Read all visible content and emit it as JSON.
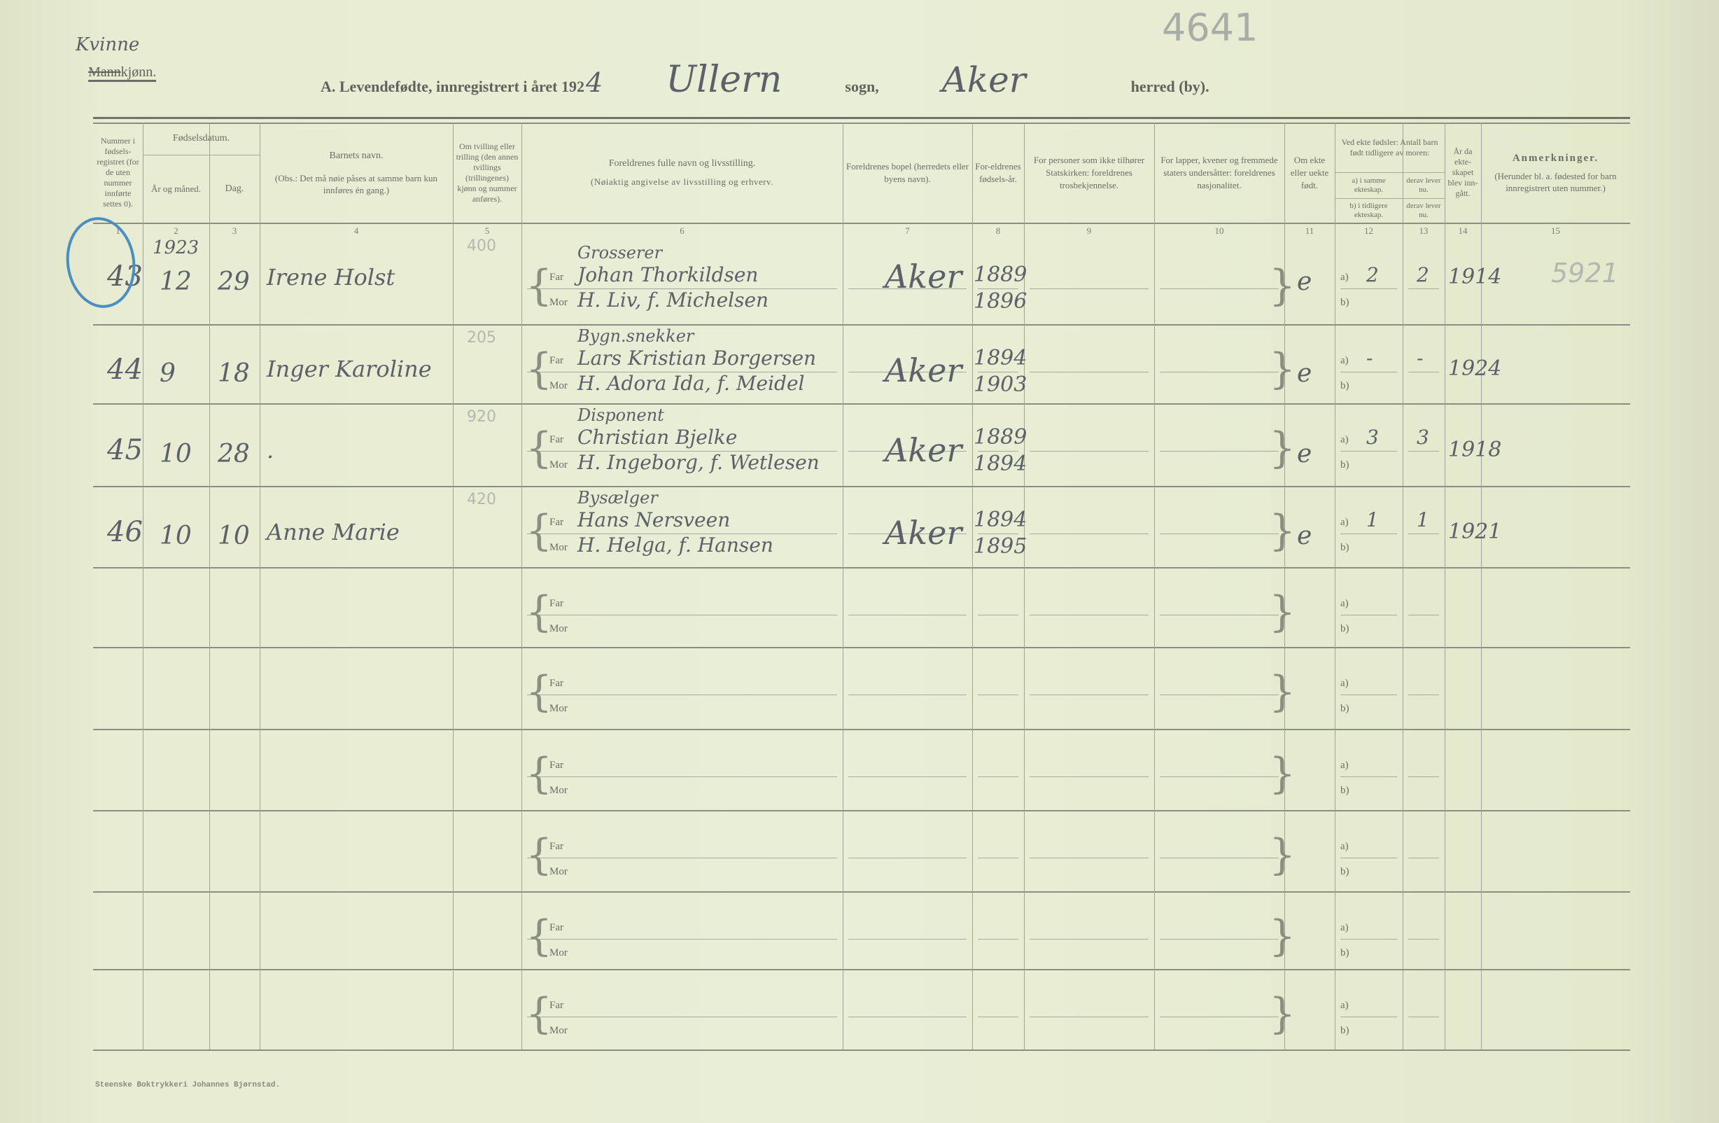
{
  "header": {
    "gender_handwritten": "Kvinne",
    "gender_struck": "Mann",
    "gender_suffix": "kjønn.",
    "title_prefix": "A.  Levendefødte, innregistrert i året 192",
    "year_digit": "4",
    "parish": "Ullern",
    "parish_suffix": "sogn,",
    "district": "Aker",
    "district_suffix": "herred (by).",
    "archive_number": "4641"
  },
  "columns": {
    "c1": "Nummer i fødsels-registret (for de uten nummer innførte settes 0).",
    "c23": "Fødselsdatum.",
    "c2": "År og måned.",
    "c3": "Dag.",
    "c4_title": "Barnets navn.",
    "c4_note": "(Obs.: Det må nøie påses at samme barn kun innføres én gang.)",
    "c5": "Om tvilling eller trilling (den annen tvillings (trillingenes) kjønn og nummer anføres).",
    "c6_title": "Foreldrenes fulle navn og livsstilling.",
    "c6_note": "(Nøiaktig angivelse av livsstilling og erhverv.",
    "c7": "Foreldrenes bopel (herredets eller byens navn).",
    "c8": "For-eldrenes fødsels-år.",
    "c9": "For personer som ikke tilhører Statskirken: foreldrenes trosbekjennelse.",
    "c10": "For lapper, kvener og fremmede staters undersåtter: foreldrenes nasjonalitet.",
    "c11": "Om ekte eller uekte født.",
    "c1213": "Ved ekte fødsler: Antall barn født tidligere av moren:",
    "c12a": "a) i samme ekteskap.",
    "c13a": "derav lever nu.",
    "c12b": "b) i tidligere ekteskap.",
    "c13b": "derav lever nu.",
    "c14": "År da ekte-skapet blev inn-gått.",
    "c15_title": "Anmerkninger.",
    "c15_note": "(Herunder bl. a. fødested for barn innregistrert uten nummer.)",
    "numbers": [
      "1",
      "2",
      "3",
      "4",
      "5",
      "6",
      "7",
      "8",
      "9",
      "10",
      "11",
      "12",
      "13",
      "14",
      "15"
    ]
  },
  "labels": {
    "far": "Far",
    "mor": "Mor",
    "a": "a)",
    "b": "b)"
  },
  "rows": [
    {
      "number": "43",
      "circled": true,
      "year": "1923",
      "month": "12",
      "day": "29",
      "name": "Irene Holst",
      "pencil": "400",
      "occupation": "Grosserer",
      "father": "Johan Thorkildsen",
      "mother": "H. Liv, f. Michelsen",
      "residence": "Aker",
      "father_year": "1889",
      "mother_year": "1896",
      "legit": "e",
      "a": "2",
      "a_alive": "2",
      "married": "1914",
      "note": "5921"
    },
    {
      "number": "44",
      "year": "",
      "month": "9",
      "day": "18",
      "name": "Inger Karoline",
      "pencil": "205",
      "occupation": "Bygn.snekker",
      "father": "Lars Kristian Borgersen",
      "mother": "H. Adora Ida, f. Meidel",
      "residence": "Aker",
      "father_year": "1894",
      "mother_year": "1903",
      "legit": "e",
      "a": "-",
      "a_alive": "-",
      "married": "1924",
      "note": ""
    },
    {
      "number": "45",
      "year": "",
      "month": "10",
      "day": "28",
      "name": ".",
      "pencil": "920",
      "occupation": "Disponent",
      "father": "Christian Bjelke",
      "mother": "H. Ingeborg, f. Wetlesen",
      "residence": "Aker",
      "father_year": "1889",
      "mother_year": "1894",
      "legit": "e",
      "a": "3",
      "a_alive": "3",
      "married": "1918",
      "note": ""
    },
    {
      "number": "46",
      "year": "",
      "month": "10",
      "day": "10",
      "name": "Anne Marie",
      "pencil": "420",
      "occupation": "Bysælger",
      "father": "Hans Nersveen",
      "mother": "H. Helga, f. Hansen",
      "residence": "Aker",
      "father_year": "1894",
      "mother_year": "1895",
      "legit": "e",
      "a": "1",
      "a_alive": "1",
      "married": "1921",
      "note": ""
    },
    {},
    {},
    {},
    {},
    {},
    {}
  ],
  "footer": {
    "printer": "Steenske Boktrykkeri Johannes Bjørnstad."
  },
  "colors": {
    "paper": "#e7ecd2",
    "ink": "#5c6068",
    "rule": "#8a8f84",
    "circle": "#4a8fc4"
  }
}
